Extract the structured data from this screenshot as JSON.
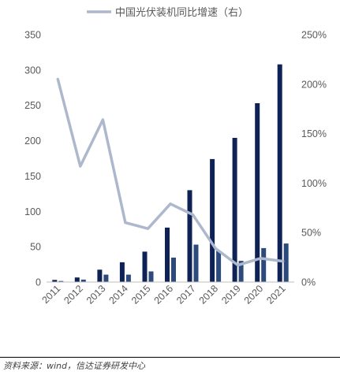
{
  "chart_data": {
    "type": "bar",
    "categories": [
      "2011",
      "2012",
      "2013",
      "2014",
      "2015",
      "2016",
      "2017",
      "2018",
      "2019",
      "2020",
      "2021"
    ],
    "series": [
      {
        "name": "",
        "axis": "left",
        "kind": "bar",
        "values": [
          3,
          6.5,
          17.5,
          28,
          43,
          77,
          130,
          174,
          204,
          253,
          308
        ],
        "color": "#0e2255"
      },
      {
        "name": "",
        "axis": "left",
        "kind": "bar",
        "values": [
          1.5,
          3.5,
          10.5,
          10.5,
          15,
          34.5,
          53,
          44,
          30,
          48,
          54.5
        ],
        "color": "#2d4a7c"
      },
      {
        "name": "中国光伏装机同比增速（右）",
        "axis": "right",
        "kind": "line",
        "values": [
          205,
          117,
          164,
          60,
          54,
          79,
          68,
          34,
          17,
          24,
          21
        ],
        "color": "#aeb8cc"
      }
    ],
    "y_left": {
      "ylim": [
        0,
        350
      ],
      "ticks": [
        "0",
        "50",
        "100",
        "150",
        "200",
        "250",
        "300",
        "350"
      ]
    },
    "y_right": {
      "ylim": [
        0,
        250
      ],
      "ticks": [
        "0%",
        "50%",
        "100%",
        "150%",
        "200%",
        "250%"
      ]
    },
    "legend_position": "top-center",
    "grid": false
  },
  "legend": {
    "label": "中国光伏装机同比增速（右）"
  },
  "source": "资料来源：wind，信达证券研发中心"
}
